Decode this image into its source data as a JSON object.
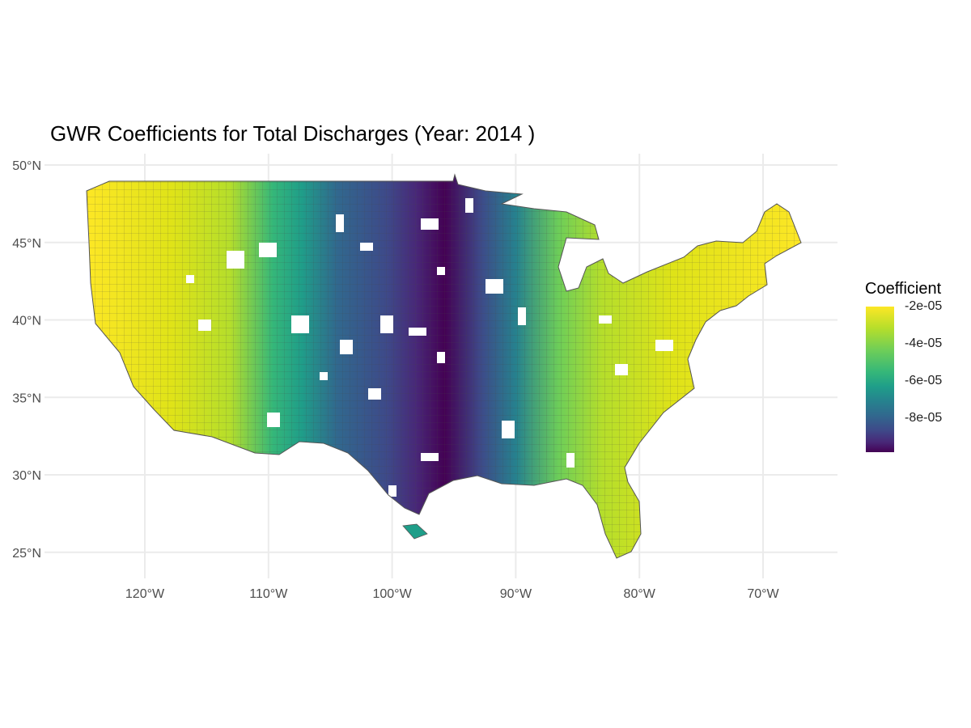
{
  "title": "GWR Coefficients for Total Discharges (Year: 2014 )",
  "legend": {
    "title": "Coefficient",
    "ticks": [
      "-2e-05",
      "-4e-05",
      "-6e-05",
      "-8e-05"
    ],
    "colors": [
      "#440154",
      "#482878",
      "#3e4989",
      "#31688e",
      "#26828e",
      "#1f9e89",
      "#35b779",
      "#6ece58",
      "#b5de2b",
      "#fde725"
    ]
  },
  "axes": {
    "y_ticks": [
      "50°N",
      "45°N",
      "40°N",
      "35°N",
      "30°N",
      "25°N"
    ],
    "x_ticks": [
      "120°W",
      "110°W",
      "100°W",
      "90°W",
      "80°W",
      "70°W"
    ]
  },
  "chart_data": {
    "type": "heatmap",
    "title": "GWR Coefficients for Total Discharges (Year: 2014 )",
    "xlabel": "",
    "ylabel": "",
    "legend_title": "Coefficient",
    "legend_placement": "right",
    "colormap": "viridis",
    "value_range": [
      -0.0001,
      -2e-05
    ],
    "grid": true,
    "xlim": [
      -127.5,
      -64.5
    ],
    "ylim": [
      23.5,
      50.5
    ],
    "description_of_pattern_by_longitude": [
      {
        "lon": -122,
        "value": -2e-05
      },
      {
        "lon": -115,
        "value": -3.5e-05
      },
      {
        "lon": -110,
        "value": -6e-05
      },
      {
        "lon": -105,
        "value": -7.5e-05
      },
      {
        "lon": -100,
        "value": -8.8e-05
      },
      {
        "lon": -97,
        "value": -9.8e-05
      },
      {
        "lon": -93,
        "value": -7e-05
      },
      {
        "lon": -89,
        "value": -5e-05
      },
      {
        "lon": -85,
        "value": -4e-05
      },
      {
        "lon": -80,
        "value": -3e-05
      },
      {
        "lon": -72,
        "value": -2e-05
      }
    ]
  }
}
